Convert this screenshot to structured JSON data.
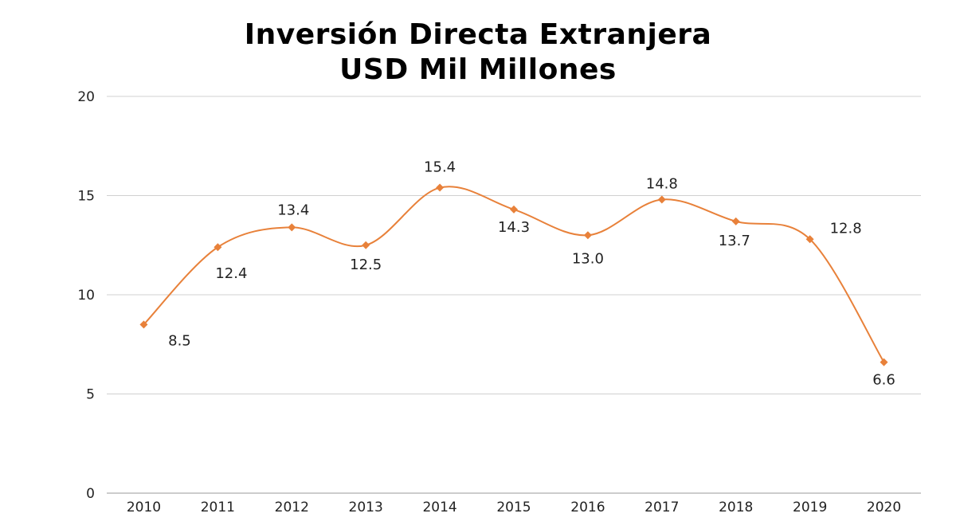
{
  "chart_data": {
    "type": "line",
    "title": [
      "Inversión Directa Extranjera",
      "USD Mil Millones"
    ],
    "xlabel": "",
    "ylabel": "",
    "categories": [
      "2010",
      "2011",
      "2012",
      "2013",
      "2014",
      "2015",
      "2016",
      "2017",
      "2018",
      "2019",
      "2020"
    ],
    "values": [
      8.5,
      12.4,
      13.4,
      12.5,
      15.4,
      14.3,
      13.0,
      14.8,
      13.7,
      12.8,
      6.6
    ],
    "data_labels": [
      "8.5",
      "12.4",
      "13.4",
      "12.5",
      "15.4",
      "14.3",
      "13.0",
      "14.8",
      "13.7",
      "12.8",
      "6.6"
    ],
    "ylim": [
      0,
      20
    ],
    "yticks": [
      0,
      5,
      10,
      15,
      20
    ],
    "grid": true,
    "legend": "none",
    "smooth": true,
    "marker": "diamond",
    "line_color": "#E8813A",
    "grid_color": "#D0D0D0"
  }
}
